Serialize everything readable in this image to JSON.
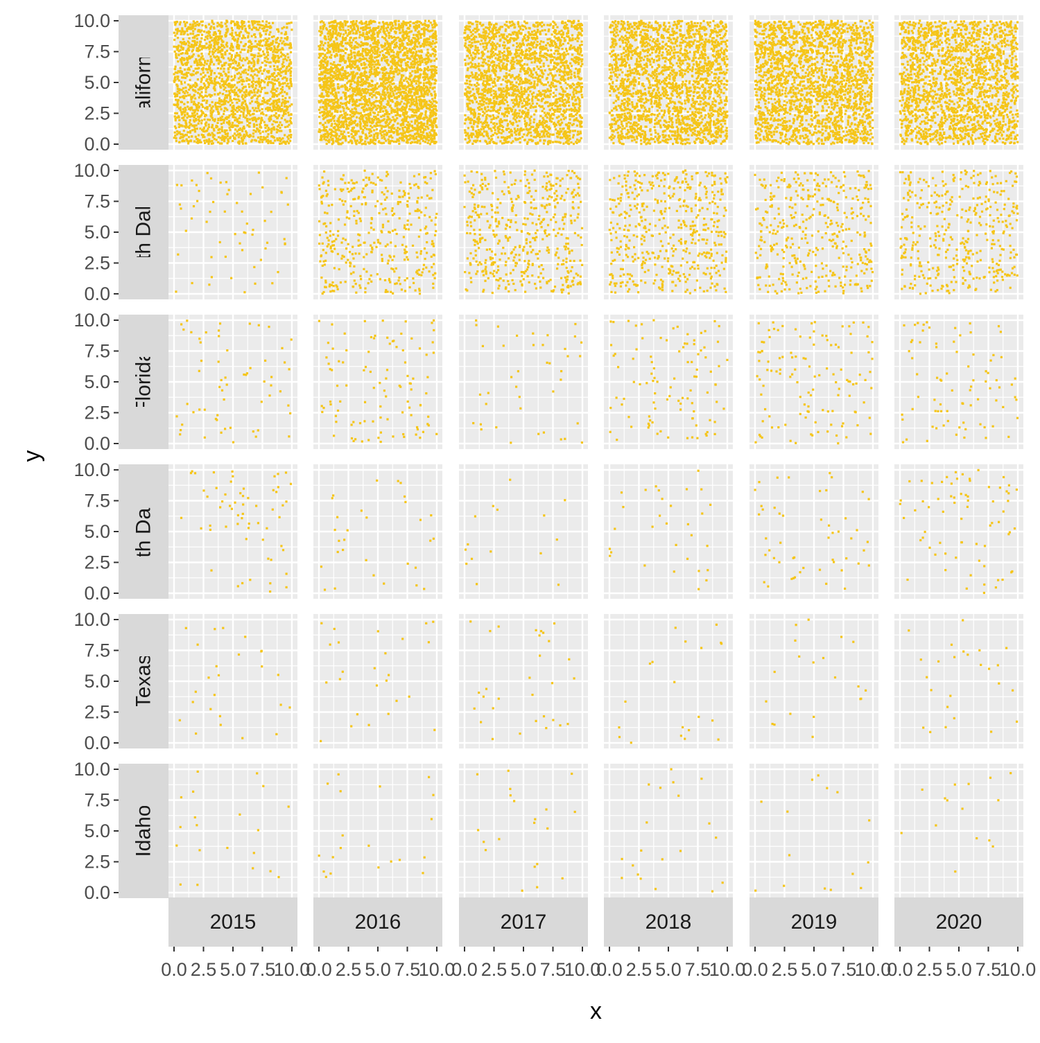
{
  "chart_data": {
    "type": "scatter",
    "layout": "facet_grid",
    "xlabel": "x",
    "ylabel": "y",
    "title": "",
    "xlim": [
      0,
      10
    ],
    "ylim": [
      0,
      10
    ],
    "x_ticks": [
      "0.0",
      "2.5",
      "5.0",
      "7.5",
      "10.0"
    ],
    "y_ticks": [
      "0.0",
      "2.5",
      "5.0",
      "7.5",
      "10.0"
    ],
    "tick_values": [
      0,
      2.5,
      5,
      7.5,
      10
    ],
    "facet_cols": [
      "2015",
      "2016",
      "2017",
      "2018",
      "2019",
      "2020"
    ],
    "facet_rows": [
      "California",
      "North Dakota",
      "Florida",
      "South Dakota",
      "Texas",
      "Idaho"
    ],
    "approx_points_per_panel": [
      [
        2000,
        3000,
        2200,
        2200,
        2200,
        2000
      ],
      [
        60,
        400,
        500,
        500,
        400,
        400
      ],
      [
        60,
        100,
        40,
        100,
        120,
        80
      ],
      [
        60,
        30,
        15,
        30,
        50,
        70
      ],
      [
        25,
        25,
        30,
        20,
        20,
        25
      ],
      [
        20,
        20,
        20,
        20,
        15,
        15
      ]
    ],
    "x_distribution": "uniform",
    "y_distribution": "uniform",
    "point_color": "#F5C518",
    "panel_background": "#EBEBEB",
    "strip_background": "#D9D9D9",
    "grid_color": "#FFFFFF",
    "grid": true,
    "legend": "none"
  }
}
